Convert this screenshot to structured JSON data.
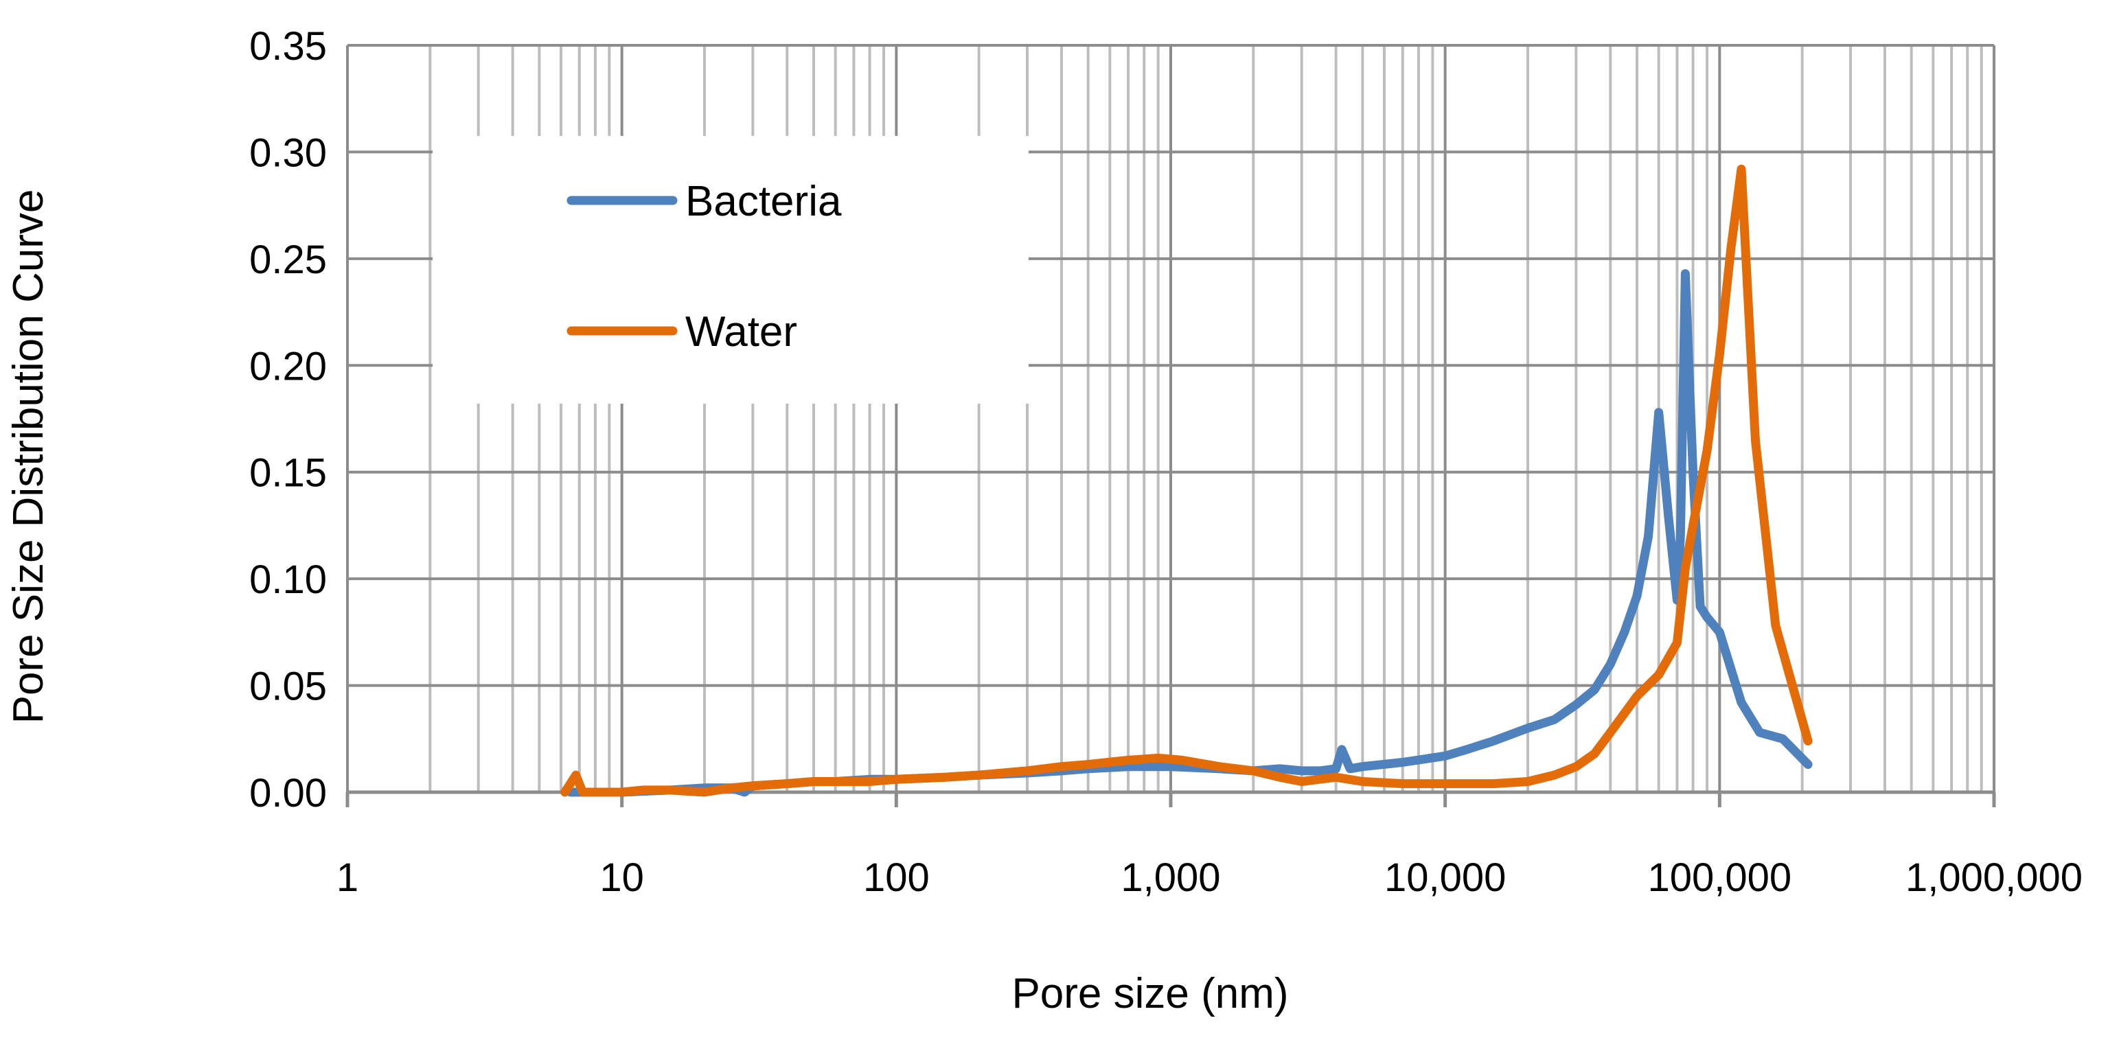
{
  "chart_data": {
    "type": "line",
    "x_scale": "log",
    "xlabel": "Pore size (nm)",
    "ylabel": "Pore Size Distribution Curve",
    "xlim": [
      1,
      1000000
    ],
    "ylim": [
      0,
      0.35
    ],
    "x_ticks": [
      1,
      10,
      100,
      1000,
      10000,
      100000,
      1000000
    ],
    "x_tick_labels": [
      "1",
      "10",
      "100",
      "1,000",
      "10,000",
      "100,000",
      "1,000,000"
    ],
    "y_ticks": [
      0,
      0.05,
      0.1,
      0.15,
      0.2,
      0.25,
      0.3,
      0.35
    ],
    "y_tick_labels": [
      "0.00",
      "0.05",
      "0.10",
      "0.15",
      "0.20",
      "0.25",
      "0.30",
      "0.35"
    ],
    "grid": true,
    "legend_position": "top-left",
    "series": [
      {
        "name": "Bacteria",
        "color": "#4F81BD",
        "points": [
          [
            6.5,
            0.0
          ],
          [
            10,
            0.0
          ],
          [
            15,
            0.001
          ],
          [
            20,
            0.002
          ],
          [
            25,
            0.002
          ],
          [
            28,
            0.0
          ],
          [
            30,
            0.003
          ],
          [
            40,
            0.004
          ],
          [
            50,
            0.005
          ],
          [
            60,
            0.005
          ],
          [
            80,
            0.006
          ],
          [
            100,
            0.006
          ],
          [
            150,
            0.007
          ],
          [
            200,
            0.008
          ],
          [
            300,
            0.009
          ],
          [
            400,
            0.01
          ],
          [
            500,
            0.011
          ],
          [
            700,
            0.012
          ],
          [
            1000,
            0.012
          ],
          [
            1500,
            0.011
          ],
          [
            2000,
            0.01
          ],
          [
            2500,
            0.011
          ],
          [
            3000,
            0.01
          ],
          [
            3500,
            0.01
          ],
          [
            4000,
            0.011
          ],
          [
            4200,
            0.02
          ],
          [
            4500,
            0.011
          ],
          [
            5000,
            0.012
          ],
          [
            7000,
            0.014
          ],
          [
            10000,
            0.017
          ],
          [
            12000,
            0.02
          ],
          [
            15000,
            0.024
          ],
          [
            20000,
            0.03
          ],
          [
            25000,
            0.034
          ],
          [
            30000,
            0.041
          ],
          [
            35000,
            0.048
          ],
          [
            40000,
            0.06
          ],
          [
            45000,
            0.075
          ],
          [
            50000,
            0.092
          ],
          [
            55000,
            0.12
          ],
          [
            60000,
            0.178
          ],
          [
            65000,
            0.13
          ],
          [
            70000,
            0.09
          ],
          [
            72000,
            0.12
          ],
          [
            75000,
            0.243
          ],
          [
            80000,
            0.15
          ],
          [
            85000,
            0.087
          ],
          [
            90000,
            0.082
          ],
          [
            100000,
            0.075
          ],
          [
            120000,
            0.042
          ],
          [
            140000,
            0.028
          ],
          [
            170000,
            0.025
          ],
          [
            210000,
            0.013
          ]
        ]
      },
      {
        "name": "Water",
        "color": "#E36C09",
        "points": [
          [
            6.2,
            0.0
          ],
          [
            6.8,
            0.008
          ],
          [
            7.2,
            0.0
          ],
          [
            10,
            0.0
          ],
          [
            12,
            0.001
          ],
          [
            15,
            0.001
          ],
          [
            20,
            0.0
          ],
          [
            25,
            0.002
          ],
          [
            30,
            0.003
          ],
          [
            40,
            0.004
          ],
          [
            50,
            0.005
          ],
          [
            60,
            0.005
          ],
          [
            80,
            0.005
          ],
          [
            100,
            0.006
          ],
          [
            150,
            0.007
          ],
          [
            200,
            0.008
          ],
          [
            300,
            0.01
          ],
          [
            400,
            0.012
          ],
          [
            500,
            0.013
          ],
          [
            700,
            0.015
          ],
          [
            900,
            0.016
          ],
          [
            1100,
            0.015
          ],
          [
            1500,
            0.012
          ],
          [
            2000,
            0.01
          ],
          [
            2500,
            0.007
          ],
          [
            3000,
            0.005
          ],
          [
            4000,
            0.007
          ],
          [
            5000,
            0.005
          ],
          [
            7000,
            0.004
          ],
          [
            10000,
            0.004
          ],
          [
            15000,
            0.004
          ],
          [
            20000,
            0.005
          ],
          [
            25000,
            0.008
          ],
          [
            30000,
            0.012
          ],
          [
            35000,
            0.018
          ],
          [
            40000,
            0.028
          ],
          [
            50000,
            0.045
          ],
          [
            60000,
            0.055
          ],
          [
            70000,
            0.07
          ],
          [
            75000,
            0.105
          ],
          [
            80000,
            0.125
          ],
          [
            90000,
            0.16
          ],
          [
            100000,
            0.205
          ],
          [
            110000,
            0.255
          ],
          [
            120000,
            0.292
          ],
          [
            135000,
            0.165
          ],
          [
            160000,
            0.078
          ],
          [
            210000,
            0.024
          ]
        ]
      }
    ]
  }
}
